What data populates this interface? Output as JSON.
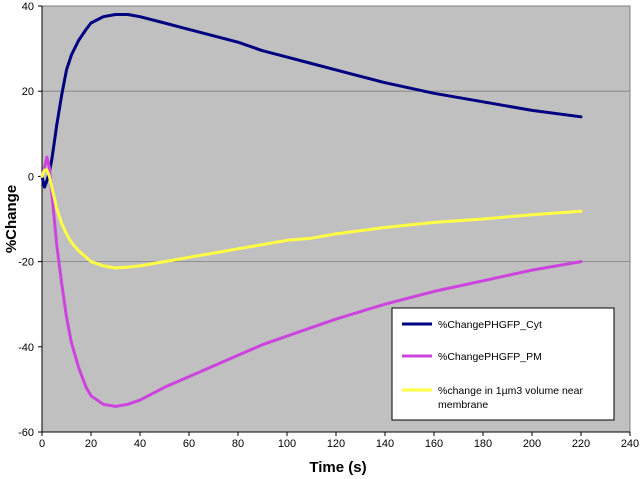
{
  "chart_data": {
    "type": "line",
    "title": "",
    "xlabel": "Time (s)",
    "ylabel": "%Change",
    "xlim": [
      0,
      240
    ],
    "ylim": [
      -60,
      40
    ],
    "x_ticks": [
      0,
      20,
      40,
      60,
      80,
      100,
      120,
      140,
      160,
      180,
      200,
      220,
      240
    ],
    "y_ticks": [
      -60,
      -40,
      -20,
      0,
      20,
      40
    ],
    "y_gridlines": [
      -20,
      20
    ],
    "grid": true,
    "plot_background": "#c0c0c0",
    "legend_position": "bottom-right",
    "series": [
      {
        "name": "%ChangePHGFP_Cyt",
        "color": "#000080",
        "x": [
          0,
          1,
          2,
          3,
          4,
          5,
          6,
          8,
          10,
          12,
          15,
          18,
          20,
          25,
          30,
          35,
          40,
          50,
          60,
          70,
          80,
          90,
          100,
          110,
          120,
          140,
          160,
          180,
          200,
          220
        ],
        "y": [
          0,
          -2.5,
          -1,
          1,
          4,
          8,
          12,
          19,
          25,
          28.5,
          32,
          34.5,
          36,
          37.5,
          38,
          38,
          37.5,
          36,
          34.5,
          33,
          31.5,
          29.5,
          28,
          26.5,
          25,
          22,
          19.5,
          17.5,
          15.5,
          14
        ]
      },
      {
        "name": "%ChangePHGFP_PM",
        "color": "#cc44dd",
        "x": [
          0,
          1,
          2,
          3,
          4,
          5,
          6,
          8,
          10,
          12,
          15,
          18,
          20,
          25,
          30,
          35,
          40,
          50,
          60,
          70,
          80,
          90,
          100,
          110,
          120,
          140,
          160,
          180,
          200,
          220
        ],
        "y": [
          0,
          2,
          4.5,
          2,
          -4,
          -10,
          -16,
          -25,
          -33,
          -39,
          -45,
          -49.5,
          -51.5,
          -53.5,
          -54,
          -53.5,
          -52.5,
          -49.5,
          -47,
          -44.5,
          -42,
          -39.5,
          -37.5,
          -35.5,
          -33.5,
          -30,
          -27,
          -24.5,
          -22,
          -20
        ]
      },
      {
        "name": "%change in 1µm3 volume near membrane",
        "color": "#ffff44",
        "x": [
          0,
          1,
          2,
          3,
          4,
          5,
          6,
          8,
          10,
          12,
          15,
          18,
          20,
          25,
          30,
          35,
          40,
          50,
          60,
          70,
          80,
          90,
          100,
          110,
          120,
          140,
          160,
          180,
          200,
          220
        ],
        "y": [
          0,
          1.5,
          1.5,
          0,
          -2.5,
          -5,
          -7.5,
          -11,
          -13.5,
          -15.5,
          -17.5,
          -19,
          -20,
          -21,
          -21.5,
          -21.3,
          -21,
          -20,
          -19,
          -18,
          -17,
          -16,
          -15,
          -14.5,
          -13.5,
          -12,
          -10.8,
          -10,
          -9,
          -8.2
        ]
      }
    ]
  }
}
